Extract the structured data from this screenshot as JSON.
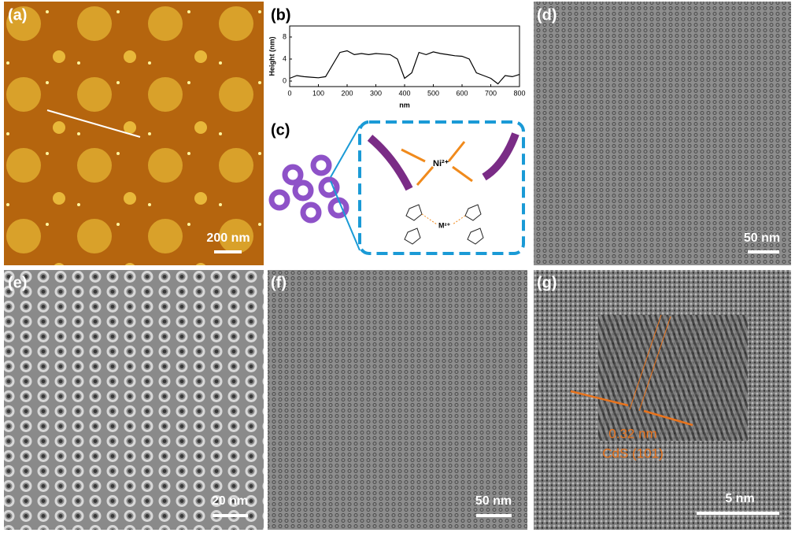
{
  "panels": [
    {
      "label": "(a)",
      "scale_bar": "200 nm"
    },
    {
      "label": "(b)"
    },
    {
      "label": "(c)",
      "labels": [
        "Ni²⁺",
        "M²⁺"
      ]
    },
    {
      "label": "(d)",
      "scale_bar": "50 nm"
    },
    {
      "label": "(e)",
      "scale_bar": "20 nm"
    },
    {
      "label": "(f)",
      "scale_bar": "50 nm"
    },
    {
      "label": "(g)",
      "scale_bar": "5 nm",
      "annotations": [
        "0.32 nm",
        "CdS (101)"
      ]
    }
  ],
  "chart_data": {
    "type": "line",
    "xlabel": "nm",
    "ylabel": "Height (nm)",
    "color": "#000000",
    "x": [
      0,
      25,
      50,
      75,
      100,
      125,
      150,
      175,
      200,
      225,
      250,
      275,
      300,
      325,
      350,
      375,
      400,
      425,
      450,
      475,
      500,
      525,
      550,
      575,
      600,
      625,
      650,
      675,
      700,
      725,
      750,
      775,
      800
    ],
    "values": [
      0.5,
      1,
      0.8,
      0.7,
      0.6,
      0.8,
      3,
      5.2,
      5.5,
      4.8,
      5,
      4.8,
      5,
      4.9,
      4.8,
      4,
      0.5,
      1.5,
      5.2,
      4.8,
      5.3,
      5,
      4.8,
      4.6,
      4.5,
      4,
      1.5,
      1,
      0.5,
      -0.5,
      1,
      0.8,
      1.2
    ],
    "xlim": [
      0,
      800
    ],
    "ylim": [
      -1,
      10
    ],
    "xticks": [
      0,
      100,
      200,
      300,
      400,
      500,
      600,
      700,
      800
    ],
    "yticks": [
      0,
      4,
      8
    ]
  }
}
